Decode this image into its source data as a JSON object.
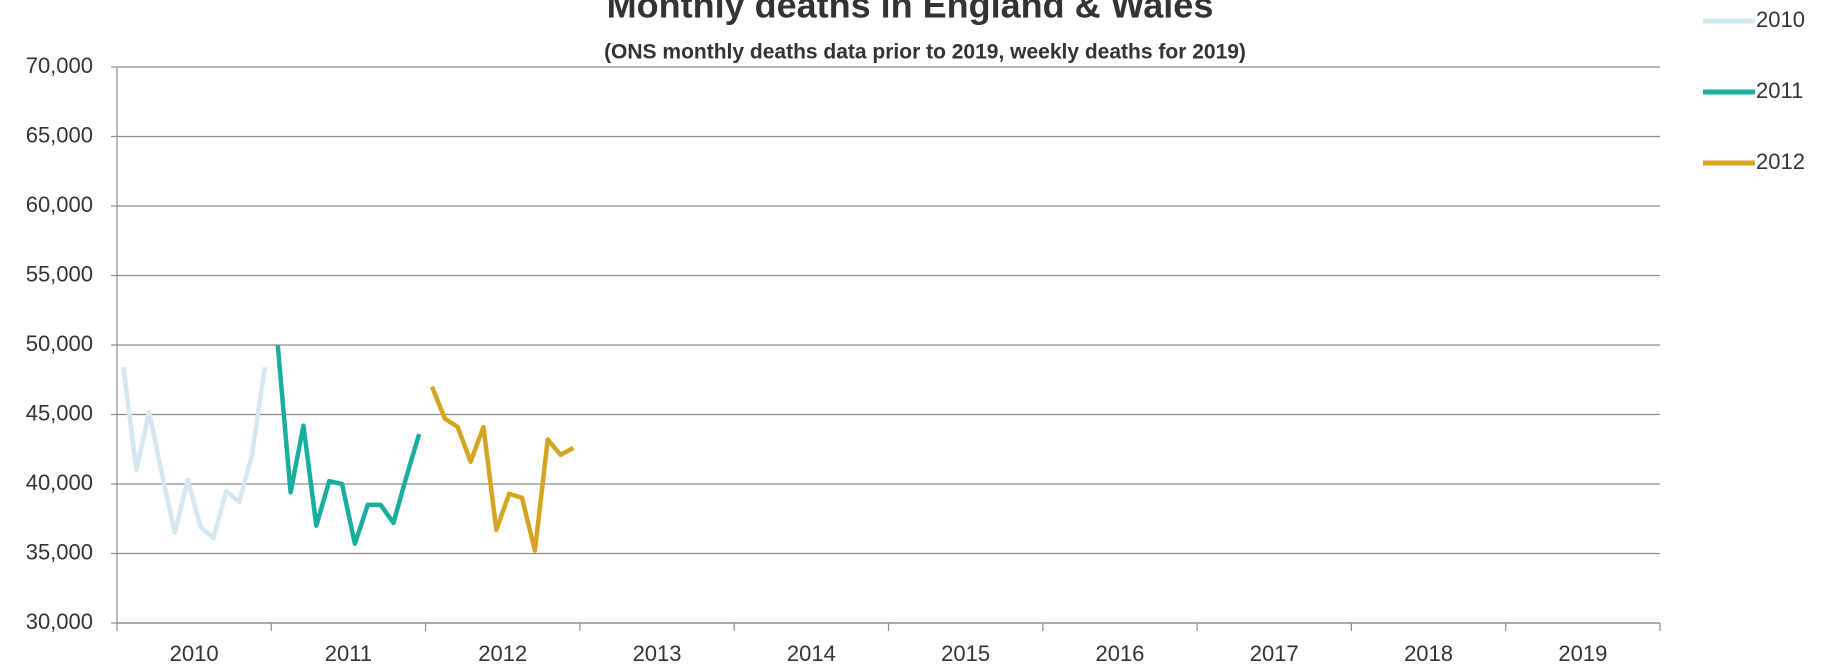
{
  "chart_data": {
    "type": "line",
    "title": "Monthly deaths in England & Wales",
    "subtitle": "(ONS monthly deaths data prior to 2019, weekly deaths for 2019)",
    "categories": [
      "2010",
      null,
      null,
      null,
      null,
      null,
      null,
      null,
      null,
      null,
      null,
      null,
      "2011",
      null,
      null,
      null,
      null,
      null,
      null,
      null,
      null,
      null,
      null,
      null,
      "2012",
      null,
      null,
      null,
      null,
      null,
      null,
      null,
      null,
      null,
      null,
      null,
      "2013",
      null,
      null,
      null,
      null,
      null,
      null,
      null,
      null,
      null,
      null,
      null,
      "2014",
      null,
      null,
      null,
      null,
      null,
      null,
      null,
      null,
      null,
      null,
      null,
      "2015",
      null,
      null,
      null,
      null,
      null,
      null,
      null,
      null,
      null,
      null,
      null,
      "2016",
      null,
      null,
      null,
      null,
      null,
      null,
      null,
      null,
      null,
      null,
      null,
      "2017",
      null,
      null,
      null,
      null,
      null,
      null,
      null,
      null,
      null,
      null,
      null,
      "2018",
      null,
      null,
      null,
      null,
      null,
      null,
      null,
      null,
      null,
      null,
      null,
      "2019",
      null,
      null,
      null,
      null,
      null,
      null,
      null,
      null,
      null,
      null,
      null
    ],
    "series": [
      {
        "name": "2010",
        "color": "#d5e7f0",
        "values": [
          48400,
          41000,
          45200,
          40700,
          36500,
          40300,
          36900,
          36100,
          39500,
          38700,
          42100,
          48400,
          null,
          null,
          null,
          null,
          null,
          null,
          null,
          null,
          null,
          null,
          null,
          null,
          null,
          null,
          null,
          null,
          null,
          null,
          null,
          null,
          null,
          null,
          null,
          null,
          null,
          null,
          null,
          null,
          null,
          null,
          null,
          null,
          null,
          null,
          null,
          null,
          null,
          null,
          null,
          null,
          null,
          null,
          null,
          null,
          null,
          null,
          null,
          null,
          null,
          null,
          null,
          null,
          null,
          null,
          null,
          null,
          null,
          null,
          null,
          null,
          null,
          null,
          null,
          null,
          null,
          null,
          null,
          null,
          null,
          null,
          null,
          null,
          null,
          null,
          null,
          null,
          null,
          null,
          null,
          null,
          null,
          null,
          null,
          null,
          null,
          null,
          null,
          null,
          null,
          null,
          null,
          null,
          null,
          null,
          null,
          null,
          null,
          null,
          null,
          null,
          null,
          null,
          null,
          null,
          null,
          null,
          null,
          null
        ]
      },
      {
        "name": "2011",
        "color": "#1aae9f",
        "values": [
          null,
          null,
          null,
          null,
          null,
          null,
          null,
          null,
          null,
          null,
          null,
          null,
          50000,
          39400,
          44200,
          37000,
          40200,
          40000,
          35700,
          38500,
          38500,
          37200,
          40500,
          43600,
          null,
          null,
          null,
          null,
          null,
          null,
          null,
          null,
          null,
          null,
          null,
          null,
          null,
          null,
          null,
          null,
          null,
          null,
          null,
          null,
          null,
          null,
          null,
          null,
          null,
          null,
          null,
          null,
          null,
          null,
          null,
          null,
          null,
          null,
          null,
          null,
          null,
          null,
          null,
          null,
          null,
          null,
          null,
          null,
          null,
          null,
          null,
          null,
          null,
          null,
          null,
          null,
          null,
          null,
          null,
          null,
          null,
          null,
          null,
          null,
          null,
          null,
          null,
          null,
          null,
          null,
          null,
          null,
          null,
          null,
          null,
          null,
          null,
          null,
          null,
          null,
          null,
          null,
          null,
          null,
          null,
          null,
          null,
          null,
          null,
          null,
          null,
          null,
          null,
          null,
          null,
          null,
          null,
          null,
          null,
          null
        ]
      },
      {
        "name": "2012",
        "color": "#d4a520",
        "values": [
          null,
          null,
          null,
          null,
          null,
          null,
          null,
          null,
          null,
          null,
          null,
          null,
          null,
          null,
          null,
          null,
          null,
          null,
          null,
          null,
          null,
          null,
          null,
          null,
          47000,
          44700,
          44100,
          41600,
          44100,
          36700,
          39300,
          39000,
          35200,
          43200,
          42100,
          42600,
          null,
          null,
          null,
          null,
          null,
          null,
          null,
          null,
          null,
          null,
          null,
          null,
          null,
          null,
          null,
          null,
          null,
          null,
          null,
          null,
          null,
          null,
          null,
          null,
          null,
          null,
          null,
          null,
          null,
          null,
          null,
          null,
          null,
          null,
          null,
          null,
          null,
          null,
          null,
          null,
          null,
          null,
          null,
          null,
          null,
          null,
          null,
          null,
          null,
          null,
          null,
          null,
          null,
          null,
          null,
          null,
          null,
          null,
          null,
          null,
          null,
          null,
          null,
          null,
          null,
          null,
          null,
          null,
          null,
          null,
          null,
          null,
          null,
          null,
          null,
          null,
          null,
          null,
          null,
          null,
          null,
          null,
          null,
          null
        ]
      }
    ],
    "ylim": [
      30000,
      70000
    ],
    "yticks": [
      {
        "value": 30000,
        "label": "30,000"
      },
      {
        "value": 35000,
        "label": "35,000"
      },
      {
        "value": 40000,
        "label": "40,000"
      },
      {
        "value": 45000,
        "label": "45,000"
      },
      {
        "value": 50000,
        "label": "50,000"
      },
      {
        "value": 55000,
        "label": "55,000"
      },
      {
        "value": 60000,
        "label": "60,000"
      },
      {
        "value": 65000,
        "label": "65,000"
      },
      {
        "value": 70000,
        "label": "70,000"
      }
    ],
    "grid": true,
    "legend": "right"
  }
}
